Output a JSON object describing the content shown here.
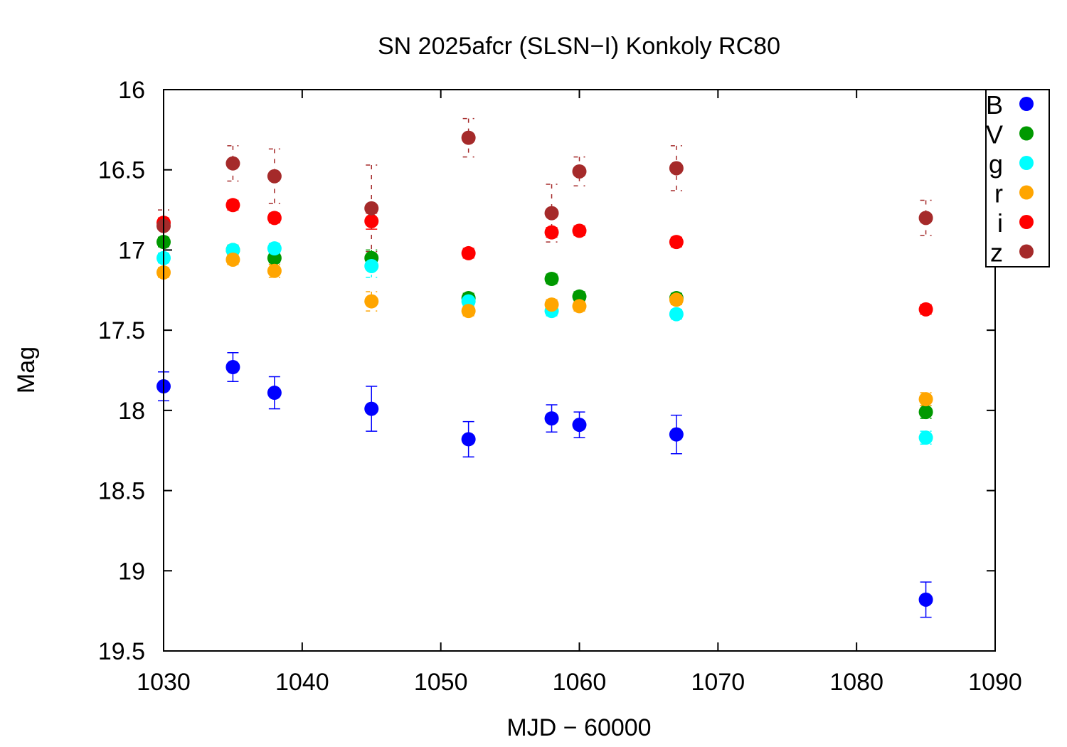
{
  "chart_data": {
    "type": "scatter",
    "title": "SN 2025afcr (SLSN−I) Konkoly RC80",
    "xlabel": "MJD − 60000",
    "ylabel": "Mag",
    "xlim": [
      1030,
      1090
    ],
    "ylim": [
      16,
      19.5
    ],
    "y_inverted": true,
    "xticks": [
      "1030",
      "1040",
      "1050",
      "1060",
      "1070",
      "1080",
      "1090"
    ],
    "yticks": [
      "16",
      "16.5",
      "17",
      "17.5",
      "18",
      "18.5",
      "19",
      "19.5"
    ],
    "legend_position": "top-right",
    "series": [
      {
        "name": "B",
        "color": "#0000ff",
        "x": [
          1030,
          1035,
          1038,
          1045,
          1052,
          1058,
          1060,
          1067,
          1085
        ],
        "y": [
          17.85,
          17.73,
          17.89,
          17.99,
          18.18,
          18.05,
          18.09,
          18.15,
          19.18
        ],
        "err": [
          0.09,
          0.09,
          0.1,
          0.14,
          0.11,
          0.085,
          0.08,
          0.12,
          0.11
        ]
      },
      {
        "name": "V",
        "color": "#009900",
        "x": [
          1030,
          1035,
          1038,
          1045,
          1052,
          1058,
          1060,
          1067,
          1085
        ],
        "y": [
          16.95,
          17.0,
          17.05,
          17.05,
          17.3,
          17.18,
          17.29,
          17.3,
          18.01
        ],
        "err": [
          0.03,
          0.03,
          0.03,
          0.05,
          0.03,
          0.03,
          0.03,
          0.03,
          0.04
        ]
      },
      {
        "name": "g",
        "color": "#00ffff",
        "x": [
          1030,
          1035,
          1038,
          1045,
          1052,
          1058,
          1067,
          1085
        ],
        "y": [
          17.05,
          17.0,
          16.99,
          17.1,
          17.32,
          17.38,
          17.4,
          18.17
        ],
        "err": [
          0.03,
          0.03,
          0.03,
          0.07,
          0.03,
          0.03,
          0.03,
          0.04
        ]
      },
      {
        "name": "r",
        "color": "#ffa500",
        "x": [
          1030,
          1035,
          1038,
          1045,
          1052,
          1058,
          1060,
          1067,
          1085
        ],
        "y": [
          17.14,
          17.06,
          17.13,
          17.32,
          17.38,
          17.34,
          17.35,
          17.31,
          17.93
        ],
        "err": [
          0.03,
          0.03,
          0.04,
          0.06,
          0.03,
          0.03,
          0.03,
          0.03,
          0.04
        ]
      },
      {
        "name": "i",
        "color": "#ff0000",
        "x": [
          1030,
          1035,
          1038,
          1045,
          1052,
          1058,
          1060,
          1067,
          1085
        ],
        "y": [
          16.83,
          16.72,
          16.8,
          16.82,
          17.02,
          16.89,
          16.88,
          16.95,
          17.37
        ],
        "err": [
          0.03,
          0.03,
          0.03,
          0.05,
          0.03,
          0.03,
          0.03,
          0.03,
          0.03
        ]
      },
      {
        "name": "z",
        "color": "#a52a2a",
        "x": [
          1030,
          1035,
          1038,
          1045,
          1052,
          1058,
          1060,
          1067,
          1085
        ],
        "y": [
          16.85,
          16.46,
          16.54,
          16.74,
          16.3,
          16.77,
          16.51,
          16.49,
          16.8
        ],
        "err": [
          0.1,
          0.11,
          0.17,
          0.27,
          0.12,
          0.18,
          0.09,
          0.14,
          0.11
        ]
      }
    ]
  }
}
